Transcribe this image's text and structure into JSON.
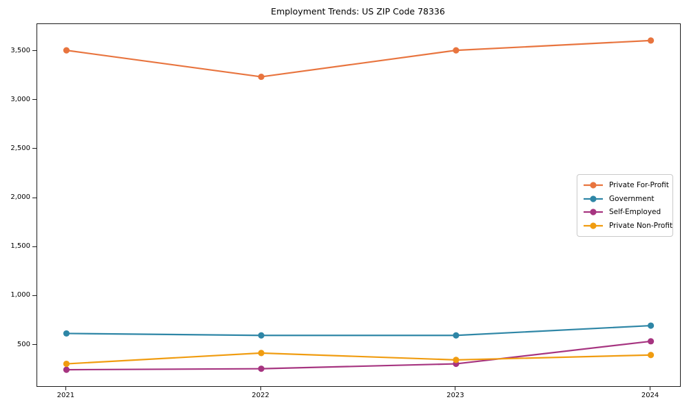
{
  "title": "Employment Trends: US ZIP Code 78336",
  "chart_data": {
    "type": "line",
    "title": "Employment Trends: US ZIP Code 78336",
    "xlabel": "",
    "ylabel": "",
    "x": [
      2021,
      2022,
      2023,
      2024
    ],
    "x_tick_labels": [
      "2021",
      "2022",
      "2023",
      "2024"
    ],
    "y_ticks": [
      500,
      1000,
      1500,
      2000,
      2500,
      3000,
      3500
    ],
    "y_tick_labels": [
      "500",
      "1,000",
      "1,500",
      "2,000",
      "2,500",
      "3,000",
      "3,500"
    ],
    "xlim": [
      2020.85,
      2024.15
    ],
    "ylim": [
      82,
      3778
    ],
    "grid": false,
    "legend_position": "center right",
    "marker": "circle",
    "series": [
      {
        "name": "Private For-Profit",
        "color": "#E8743E",
        "values": [
          3510,
          3240,
          3510,
          3610
        ]
      },
      {
        "name": "Government",
        "color": "#2E86A6",
        "values": [
          620,
          600,
          600,
          700
        ]
      },
      {
        "name": "Self-Employed",
        "color": "#A63480",
        "values": [
          250,
          260,
          310,
          540
        ]
      },
      {
        "name": "Private Non-Profit",
        "color": "#F09C10",
        "values": [
          310,
          420,
          350,
          400
        ]
      }
    ]
  }
}
